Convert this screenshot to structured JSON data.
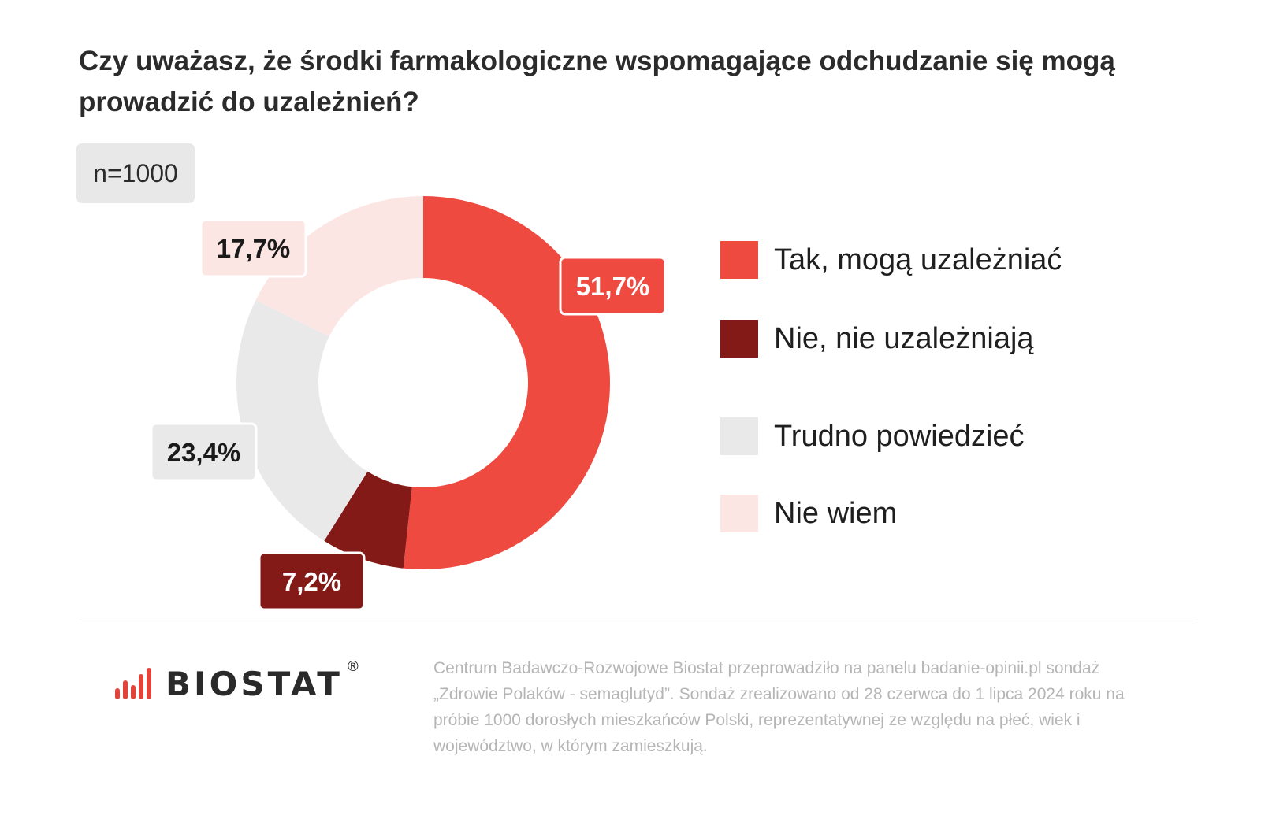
{
  "title": "Czy uważasz, że środki farmakologiczne wspomagające odchudzanie się mogą prowadzić do uzależnień?",
  "sample": "n=1000",
  "chart_data": {
    "type": "pie",
    "variant": "donut",
    "title": "Czy uważasz, że środki farmakologiczne wspomagające odchudzanie się mogą prowadzić do uzależnień?",
    "unit": "%",
    "categories": [
      "Tak, mogą uzależniać",
      "Nie, nie uzależniają",
      "Trudno powiedzieć",
      "Nie wiem"
    ],
    "values": [
      51.7,
      7.2,
      23.4,
      17.7
    ],
    "value_labels": [
      "51,7%",
      "7,2%",
      "23,4%",
      "17,7%"
    ],
    "colors": [
      "#ef4a40",
      "#841a17",
      "#e9e9e9",
      "#fce6e4"
    ],
    "label_text_colors": [
      "#ffffff",
      "#ffffff",
      "#1a1a1a",
      "#1a1a1a"
    ],
    "start_angle_deg": 0,
    "direction": "clockwise",
    "legend": "right"
  },
  "legend": {
    "items": [
      {
        "label": "Tak, mogą uzależniać",
        "color": "#ef4a40"
      },
      {
        "label": "Nie, nie uzależniają",
        "color": "#841a17"
      },
      {
        "label": "Trudno powiedzieć",
        "color": "#e9e9e9"
      },
      {
        "label": "Nie wiem",
        "color": "#fce6e4"
      }
    ]
  },
  "footer": {
    "logo_text": "BIOSTAT",
    "logo_mark": "®",
    "note": "Centrum Badawczo-Rozwojowe Biostat przeprowadziło na panelu badanie-opinii.pl sondaż „Zdrowie Polaków - semaglutyd”. Sondaż zrealizowano od 28 czerwca do 1 lipca 2024 roku na próbie 1000 dorosłych mieszkańców Polski, reprezentatywnej ze względu na płeć, wiek i województwo, w którym zamieszkują."
  }
}
